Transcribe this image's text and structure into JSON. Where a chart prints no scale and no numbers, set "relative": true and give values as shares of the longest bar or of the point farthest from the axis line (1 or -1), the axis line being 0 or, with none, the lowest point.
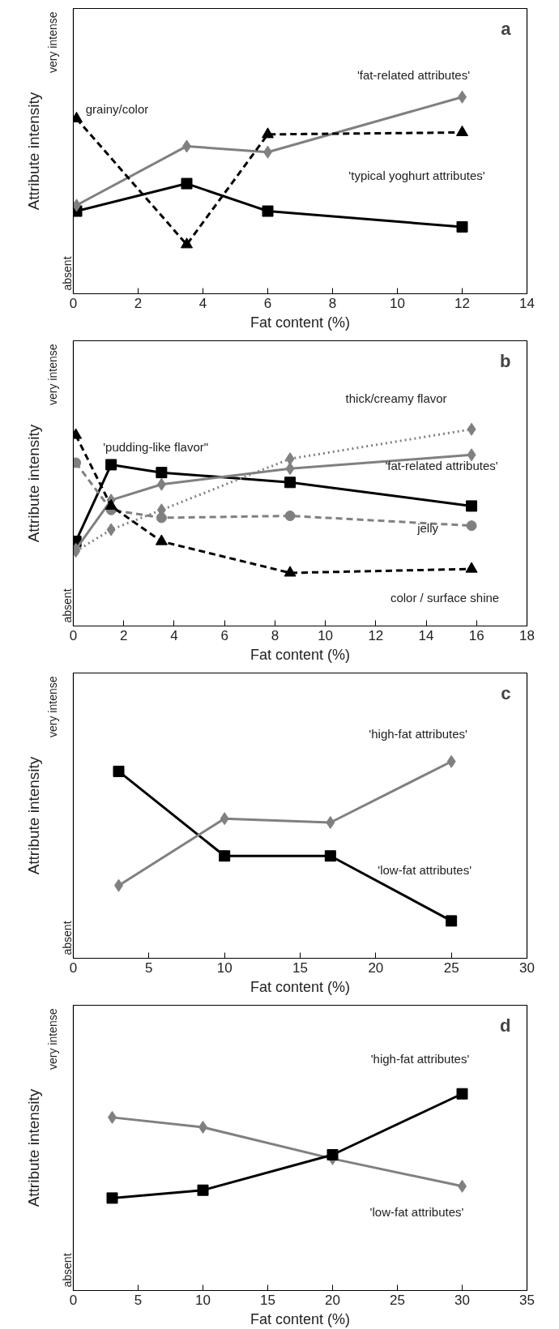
{
  "chart_data": [
    {
      "type": "line",
      "relative": true,
      "xlabel": "Fat content (%)",
      "ylabel": "Attribute intensity",
      "xlim": [
        0,
        14
      ],
      "xticks": [
        0,
        2,
        4,
        6,
        8,
        10,
        12,
        14
      ],
      "grid": false,
      "x": [
        0.1,
        3.5,
        6,
        12
      ],
      "series": [
        {
          "name": "'typical yoghurt attributes'",
          "color": "#000000",
          "values": [
            0.42,
            0.56,
            0.42,
            0.34
          ],
          "marker": "square",
          "line_style": "solid"
        },
        {
          "name": "'fat-related attributes'",
          "color": "#808080",
          "values": [
            0.45,
            0.75,
            0.72,
            1
          ],
          "marker": "diamond",
          "line_style": "solid"
        },
        {
          "name": "grainy/color",
          "color": "#000000",
          "values": [
            0.89,
            0.25,
            0.81,
            0.82
          ],
          "marker": "triangle",
          "line_style": "dashed"
        }
      ],
      "annotations": [
        "a",
        "absent",
        "very intense"
      ]
    },
    {
      "type": "line",
      "relative": true,
      "xlabel": "Fat content (%)",
      "ylabel": "Attribute intensity",
      "xlim": [
        0,
        18
      ],
      "xticks": [
        0,
        2,
        4,
        6,
        8,
        10,
        12,
        14,
        16,
        18
      ],
      "grid": false,
      "x": [
        0.1,
        1.5,
        3.5,
        8.6,
        15.8
      ],
      "series": [
        {
          "name": "'pudding-like flavor\"",
          "color": "#000000",
          "values": [
            0.43,
            0.82,
            0.78,
            0.73,
            0.61
          ],
          "marker": "square",
          "line_style": "solid"
        },
        {
          "name": "'fat-related attributes'",
          "color": "#808080",
          "values": [
            0.39,
            0.64,
            0.72,
            0.8,
            0.87
          ],
          "marker": "diamond",
          "line_style": "solid"
        },
        {
          "name": "thick/creamy flavor",
          "color": "#808080",
          "values": [
            0.38,
            0.49,
            0.59,
            0.85,
            1
          ],
          "marker": "diamond",
          "line_style": "dotted"
        },
        {
          "name": "jelly",
          "color": "#808080",
          "values": [
            0.83,
            0.59,
            0.55,
            0.56,
            0.51
          ],
          "marker": "circle",
          "line_style": "dashed"
        },
        {
          "name": "color / surface shine",
          "color": "#000000",
          "values": [
            0.97,
            0.61,
            0.43,
            0.27,
            0.29
          ],
          "marker": "triangle",
          "line_style": "dashed"
        }
      ],
      "annotations": [
        "b",
        "absent",
        "very intense"
      ]
    },
    {
      "type": "line",
      "relative": true,
      "xlabel": "Fat content (%)",
      "ylabel": "Attribute intensity",
      "xlim": [
        0,
        30
      ],
      "xticks": [
        0,
        5,
        10,
        15,
        20,
        25,
        30
      ],
      "grid": false,
      "x": [
        3,
        10,
        17,
        25
      ],
      "series": [
        {
          "name": "'low-fat attributes'",
          "color": "#000000",
          "values": [
            0.95,
            0.52,
            0.52,
            0.19
          ],
          "marker": "square",
          "line_style": "solid"
        },
        {
          "name": "'high-fat attributes'",
          "color": "#808080",
          "values": [
            0.37,
            0.71,
            0.69,
            1
          ],
          "marker": "diamond",
          "line_style": "solid"
        }
      ],
      "annotations": [
        "c",
        "absent",
        "very intense"
      ]
    },
    {
      "type": "line",
      "relative": true,
      "xlabel": "Fat content (%)",
      "ylabel": "Attribute intensity",
      "xlim": [
        0,
        35
      ],
      "xticks": [
        0,
        5,
        10,
        15,
        20,
        25,
        30,
        35
      ],
      "grid": false,
      "x": [
        3,
        10,
        20,
        30
      ],
      "series": [
        {
          "name": "'low-fat attributes'",
          "color": "#808080",
          "values": [
            0.88,
            0.83,
            0.67,
            0.53
          ],
          "marker": "diamond",
          "line_style": "solid"
        },
        {
          "name": "'high-fat attributes'",
          "color": "#000000",
          "values": [
            0.47,
            0.51,
            0.69,
            1
          ],
          "marker": "square",
          "line_style": "solid"
        }
      ],
      "annotations": [
        "d",
        "absent",
        "very intense"
      ]
    }
  ]
}
